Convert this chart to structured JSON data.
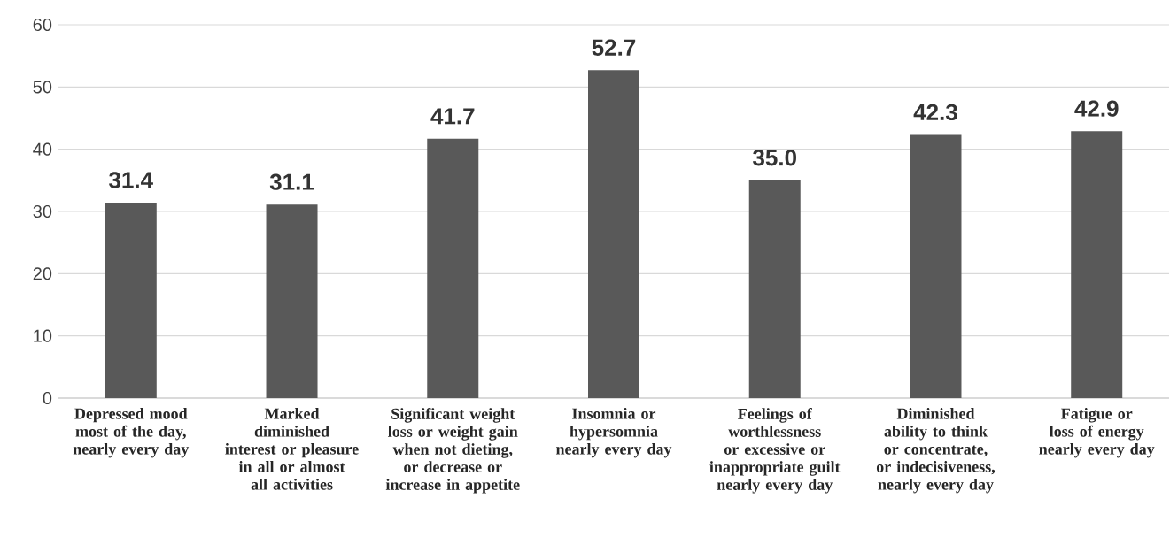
{
  "chart_data": {
    "type": "bar",
    "categories": [
      "Depressed mood most of the day, nearly every day",
      "Marked diminished interest or pleasure in all or almost all activities",
      "Significant weight loss or weight gain when not dieting, or decrease or increase in appetite",
      "Insomnia or hypersomnia nearly every day",
      "Feelings of worthlessness or excessive or inappropriate guilt nearly every day",
      "Diminished ability to think or concentrate, or indecisiveness, nearly every day",
      "Fatigue or loss of energy nearly every day"
    ],
    "values": [
      31.4,
      31.1,
      41.7,
      52.7,
      35.0,
      42.3,
      42.9
    ],
    "value_labels": [
      "31.4",
      "31.1",
      "41.7",
      "52.7",
      "35.0",
      "42.3",
      "42.9"
    ],
    "color": "#595959",
    "ylim": [
      0,
      60
    ],
    "yticks": [
      0,
      10,
      20,
      30,
      40,
      50,
      60
    ],
    "grid": "y"
  }
}
